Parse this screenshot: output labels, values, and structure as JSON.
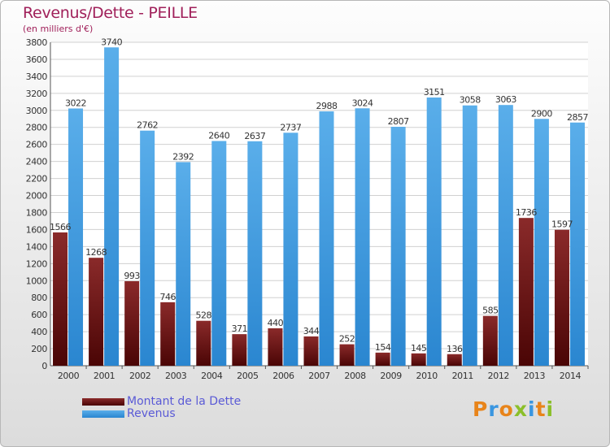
{
  "chart_data": {
    "type": "bar",
    "title": "Revenus/Dette - PEILLE",
    "subtitle": "(en milliers d'€)",
    "categories": [
      "2000",
      "2001",
      "2002",
      "2003",
      "2004",
      "2005",
      "2006",
      "2007",
      "2008",
      "2009",
      "2010",
      "2011",
      "2012",
      "2013",
      "2014"
    ],
    "series": [
      {
        "name": "Montant de la Dette",
        "color": "#7a1a1a",
        "values": [
          1566,
          1268,
          993,
          746,
          528,
          371,
          440,
          344,
          252,
          154,
          145,
          136,
          585,
          1736,
          1597
        ],
        "labels": [
          "1566",
          "1268",
          "993",
          "746",
          "528",
          "371",
          "440",
          "344",
          "252",
          "154",
          "145",
          "136",
          "585",
          "1736",
          "1597"
        ]
      },
      {
        "name": "Revenus",
        "color": "#3a96e0",
        "values": [
          3022,
          3740,
          2762,
          2392,
          2640,
          2637,
          2737,
          2988,
          3024,
          2807,
          3151,
          3058,
          3063,
          2900,
          2857
        ],
        "labels": [
          "3022",
          "3740",
          "2762",
          "2392",
          "2640",
          "2637",
          "2737",
          "2988",
          "3024",
          "2807",
          "3151",
          "3058",
          "3063",
          "2900",
          "2857"
        ]
      }
    ],
    "yticks": [
      0,
      200,
      400,
      600,
      800,
      1000,
      1200,
      1400,
      1600,
      1800,
      2000,
      2200,
      2400,
      2600,
      2800,
      3000,
      3200,
      3400,
      3600,
      3800
    ],
    "ylim": [
      0,
      3800
    ],
    "grid": true,
    "legend": "bottom-left"
  },
  "logo": {
    "text": "Proxiti",
    "colors": [
      "#e8841a",
      "#3a96e0",
      "#e8841a",
      "#8bbf2a",
      "#3a96e0",
      "#e8841a",
      "#8bbf2a"
    ]
  }
}
